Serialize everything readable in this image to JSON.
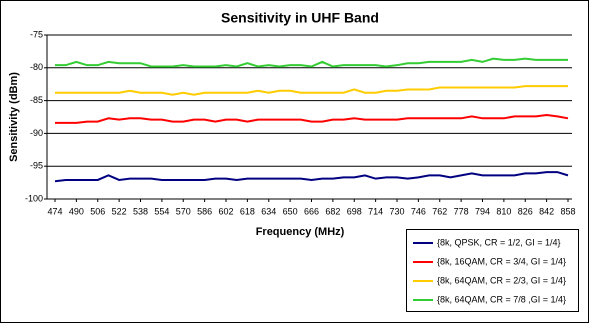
{
  "chart_data": {
    "type": "line",
    "title": "Sensitivity in UHF Band",
    "x_label": "Frequency (MHz)",
    "y_label": "Sensitivity (dBm)",
    "x": [
      474,
      482,
      490,
      498,
      506,
      514,
      522,
      530,
      538,
      546,
      554,
      562,
      570,
      578,
      586,
      594,
      602,
      610,
      618,
      626,
      634,
      642,
      650,
      658,
      666,
      674,
      682,
      690,
      698,
      706,
      714,
      722,
      730,
      738,
      746,
      754,
      762,
      770,
      778,
      786,
      794,
      802,
      810,
      818,
      826,
      834,
      842,
      850,
      858
    ],
    "xlim": [
      474,
      858
    ],
    "xticks": [
      474,
      490,
      506,
      522,
      538,
      554,
      570,
      586,
      602,
      618,
      634,
      650,
      666,
      682,
      698,
      714,
      730,
      746,
      762,
      778,
      794,
      810,
      826,
      842,
      858
    ],
    "ylim": [
      -100,
      -75
    ],
    "yticks": [
      -100,
      -95,
      -90,
      -85,
      -80,
      -75
    ],
    "grid": true,
    "legend": "bottom-right",
    "series": [
      {
        "name": "{8k, QPSK, CR = 1/2, GI = 1/4}",
        "color": "#000080",
        "values": [
          -97.3,
          -97.1,
          -97.1,
          -97.1,
          -97.1,
          -96.4,
          -97.1,
          -96.9,
          -96.9,
          -96.9,
          -97.1,
          -97.1,
          -97.1,
          -97.1,
          -97.1,
          -96.9,
          -96.9,
          -97.1,
          -96.9,
          -96.9,
          -96.9,
          -96.9,
          -96.9,
          -96.9,
          -97.1,
          -96.9,
          -96.9,
          -96.7,
          -96.7,
          -96.4,
          -96.9,
          -96.7,
          -96.7,
          -96.9,
          -96.7,
          -96.4,
          -96.4,
          -96.7,
          -96.4,
          -96.1,
          -96.4,
          -96.4,
          -96.4,
          -96.4,
          -96.1,
          -96.1,
          -95.9,
          -95.9,
          -96.4
        ]
      },
      {
        "name": "{8k, 16QAM, CR = 3/4, GI = 1/4}",
        "color": "#ff0000",
        "values": [
          -88.4,
          -88.4,
          -88.4,
          -88.2,
          -88.2,
          -87.7,
          -87.9,
          -87.7,
          -87.7,
          -87.9,
          -87.9,
          -88.2,
          -88.2,
          -87.9,
          -87.9,
          -88.2,
          -87.9,
          -87.9,
          -88.2,
          -87.9,
          -87.9,
          -87.9,
          -87.9,
          -87.9,
          -88.2,
          -88.2,
          -87.9,
          -87.9,
          -87.7,
          -87.9,
          -87.9,
          -87.9,
          -87.9,
          -87.7,
          -87.7,
          -87.7,
          -87.7,
          -87.7,
          -87.7,
          -87.4,
          -87.7,
          -87.7,
          -87.7,
          -87.4,
          -87.4,
          -87.4,
          -87.2,
          -87.4,
          -87.7
        ]
      },
      {
        "name": "{8k, 64QAM, CR = 2/3, GI = 1/4}",
        "color": "#ffcc00",
        "values": [
          -83.8,
          -83.8,
          -83.8,
          -83.8,
          -83.8,
          -83.8,
          -83.8,
          -83.5,
          -83.8,
          -83.8,
          -83.8,
          -84.1,
          -83.8,
          -84.1,
          -83.8,
          -83.8,
          -83.8,
          -83.8,
          -83.8,
          -83.5,
          -83.8,
          -83.5,
          -83.5,
          -83.8,
          -83.8,
          -83.8,
          -83.8,
          -83.8,
          -83.3,
          -83.8,
          -83.8,
          -83.5,
          -83.5,
          -83.3,
          -83.3,
          -83.3,
          -83.0,
          -83.0,
          -83.0,
          -83.0,
          -83.0,
          -83.0,
          -83.0,
          -83.0,
          -82.8,
          -82.8,
          -82.8,
          -82.8,
          -82.8
        ]
      },
      {
        "name": "{8k, 64QAM, CR = 7/8 ,GI = 1/4}",
        "color": "#33cc33",
        "values": [
          -79.6,
          -79.6,
          -79.1,
          -79.6,
          -79.6,
          -79.1,
          -79.3,
          -79.3,
          -79.3,
          -79.8,
          -79.8,
          -79.8,
          -79.6,
          -79.8,
          -79.8,
          -79.8,
          -79.6,
          -79.8,
          -79.3,
          -79.8,
          -79.6,
          -79.8,
          -79.6,
          -79.6,
          -79.8,
          -79.1,
          -79.8,
          -79.6,
          -79.6,
          -79.6,
          -79.6,
          -79.8,
          -79.6,
          -79.3,
          -79.3,
          -79.1,
          -79.1,
          -79.1,
          -79.1,
          -78.8,
          -79.1,
          -78.6,
          -78.8,
          -78.8,
          -78.6,
          -78.8,
          -78.8,
          -78.8,
          -78.8
        ]
      }
    ]
  }
}
